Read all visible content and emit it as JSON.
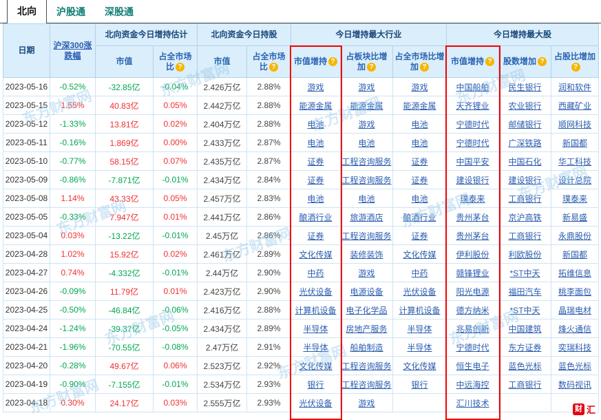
{
  "tabs": [
    {
      "label": "北向",
      "active": true
    },
    {
      "label": "沪股通",
      "active": false
    },
    {
      "label": "深股通",
      "active": false
    }
  ],
  "colors": {
    "up": "#f03030",
    "down": "#00a651",
    "link": "#2a5db0"
  },
  "watermark": {
    "text": "东方财富网"
  },
  "logo": {
    "icon": "财",
    "text": "汇"
  },
  "table": {
    "help_icon": "?",
    "groups": {
      "date": "日期",
      "hs300": "沪深300涨跌幅",
      "estimate": "北向资金今日增持估计",
      "holding": "北向资金今日持股",
      "top_industry": "今日增持最大行业",
      "top_stock": "今日增持最大股"
    },
    "subheaders": {
      "est_value": "市值",
      "est_ratio": "占全市场比",
      "hold_value": "市值",
      "hold_ratio": "占全市场比",
      "ind_value": "市值增持",
      "ind_board": "占板块比增加",
      "ind_market": "占全市场比增加",
      "stk_value": "市值增持",
      "stk_shares": "股数增加",
      "stk_ratio": "占股比增加"
    },
    "rows": [
      {
        "date": "2023-05-16",
        "hs300": "-0.52%",
        "est_value": "-32.85亿",
        "est_ratio": "-0.04%",
        "hold_value": "2.426万亿",
        "hold_ratio": "2.88%",
        "ind": [
          "游戏",
          "游戏",
          "游戏"
        ],
        "stk": [
          "中国船舶",
          "民生银行",
          "润和软件"
        ]
      },
      {
        "date": "2023-05-15",
        "hs300": "1.55%",
        "est_value": "40.83亿",
        "est_ratio": "0.05%",
        "hold_value": "2.442万亿",
        "hold_ratio": "2.88%",
        "ind": [
          "能源金属",
          "能源金属",
          "能源金属"
        ],
        "stk": [
          "天齐锂业",
          "农业银行",
          "西藏矿业"
        ]
      },
      {
        "date": "2023-05-12",
        "hs300": "-1.33%",
        "est_value": "13.81亿",
        "est_ratio": "0.02%",
        "hold_value": "2.404万亿",
        "hold_ratio": "2.88%",
        "ind": [
          "电池",
          "游戏",
          "电池"
        ],
        "stk": [
          "宁德时代",
          "邮储银行",
          "顺网科技"
        ]
      },
      {
        "date": "2023-05-11",
        "hs300": "-0.16%",
        "est_value": "1.869亿",
        "est_ratio": "0.00%",
        "hold_value": "2.433万亿",
        "hold_ratio": "2.87%",
        "ind": [
          "电池",
          "电池",
          "电池"
        ],
        "stk": [
          "宁德时代",
          "广深铁路",
          "新国都"
        ]
      },
      {
        "date": "2023-05-10",
        "hs300": "-0.77%",
        "est_value": "58.15亿",
        "est_ratio": "0.07%",
        "hold_value": "2.435万亿",
        "hold_ratio": "2.87%",
        "ind": [
          "证券",
          "工程咨询服务",
          "证券"
        ],
        "stk": [
          "中国平安",
          "中国石化",
          "华工科技"
        ]
      },
      {
        "date": "2023-05-09",
        "hs300": "-0.86%",
        "est_value": "-7.871亿",
        "est_ratio": "-0.01%",
        "hold_value": "2.434万亿",
        "hold_ratio": "2.84%",
        "ind": [
          "证券",
          "工程咨询服务",
          "证券"
        ],
        "stk": [
          "建设银行",
          "建设银行",
          "设计总院"
        ]
      },
      {
        "date": "2023-05-08",
        "hs300": "1.14%",
        "est_value": "43.33亿",
        "est_ratio": "0.05%",
        "hold_value": "2.457万亿",
        "hold_ratio": "2.83%",
        "ind": [
          "电池",
          "电池",
          "电池"
        ],
        "stk": [
          "璞泰来",
          "工商银行",
          "璞泰来"
        ]
      },
      {
        "date": "2023-05-05",
        "hs300": "-0.33%",
        "est_value": "7.947亿",
        "est_ratio": "0.01%",
        "hold_value": "2.441万亿",
        "hold_ratio": "2.86%",
        "ind": [
          "酿酒行业",
          "旅游酒店",
          "酿酒行业"
        ],
        "stk": [
          "贵州茅台",
          "京沪高铁",
          "新易盛"
        ]
      },
      {
        "date": "2023-05-04",
        "hs300": "0.03%",
        "est_value": "-13.22亿",
        "est_ratio": "-0.01%",
        "hold_value": "2.45万亿",
        "hold_ratio": "2.86%",
        "ind": [
          "证券",
          "工程咨询服务",
          "证券"
        ],
        "stk": [
          "贵州茅台",
          "工商银行",
          "永鼎股份"
        ]
      },
      {
        "date": "2023-04-28",
        "hs300": "1.02%",
        "est_value": "15.92亿",
        "est_ratio": "0.02%",
        "hold_value": "2.461万亿",
        "hold_ratio": "2.89%",
        "ind": [
          "文化传媒",
          "装修装饰",
          "文化传媒"
        ],
        "stk": [
          "伊利股份",
          "利欧股份",
          "新国都"
        ]
      },
      {
        "date": "2023-04-27",
        "hs300": "0.74%",
        "est_value": "-4.332亿",
        "est_ratio": "-0.01%",
        "hold_value": "2.44万亿",
        "hold_ratio": "2.90%",
        "ind": [
          "中药",
          "游戏",
          "中药"
        ],
        "stk": [
          "赣锋锂业",
          "*ST中天",
          "拓维信息"
        ]
      },
      {
        "date": "2023-04-26",
        "hs300": "-0.09%",
        "est_value": "11.79亿",
        "est_ratio": "0.01%",
        "hold_value": "2.423万亿",
        "hold_ratio": "2.90%",
        "ind": [
          "光伏设备",
          "电源设备",
          "光伏设备"
        ],
        "stk": [
          "阳光电源",
          "福田汽车",
          "桃李面包"
        ]
      },
      {
        "date": "2023-04-25",
        "hs300": "-0.50%",
        "est_value": "-46.84亿",
        "est_ratio": "-0.06%",
        "hold_value": "2.416万亿",
        "hold_ratio": "2.88%",
        "ind": [
          "计算机设备",
          "电子化学品",
          "计算机设备"
        ],
        "stk": [
          "德方纳米",
          "*ST中天",
          "晶瑞电材"
        ]
      },
      {
        "date": "2023-04-24",
        "hs300": "-1.24%",
        "est_value": "-39.37亿",
        "est_ratio": "-0.05%",
        "hold_value": "2.434万亿",
        "hold_ratio": "2.89%",
        "ind": [
          "半导体",
          "房地产服务",
          "半导体"
        ],
        "stk": [
          "兆易创新",
          "中国建筑",
          "烽火通信"
        ]
      },
      {
        "date": "2023-04-21",
        "hs300": "-1.96%",
        "est_value": "-70.55亿",
        "est_ratio": "-0.08%",
        "hold_value": "2.47万亿",
        "hold_ratio": "2.91%",
        "ind": [
          "半导体",
          "船舶制造",
          "半导体"
        ],
        "stk": [
          "宁德时代",
          "东方证券",
          "奕瑞科技"
        ]
      },
      {
        "date": "2023-04-20",
        "hs300": "-0.28%",
        "est_value": "49.67亿",
        "est_ratio": "0.06%",
        "hold_value": "2.523万亿",
        "hold_ratio": "2.92%",
        "ind": [
          "文化传媒",
          "工程咨询服务",
          "文化传媒"
        ],
        "stk": [
          "恒生电子",
          "蓝色光标",
          "蓝色光标"
        ]
      },
      {
        "date": "2023-04-19",
        "hs300": "-0.90%",
        "est_value": "-7.155亿",
        "est_ratio": "-0.01%",
        "hold_value": "2.534万亿",
        "hold_ratio": "2.93%",
        "ind": [
          "银行",
          "工程咨询服务",
          "银行"
        ],
        "stk": [
          "中远海控",
          "工商银行",
          "数码视讯"
        ]
      },
      {
        "date": "2023-04-18",
        "hs300": "0.30%",
        "est_value": "24.17亿",
        "est_ratio": "0.03%",
        "hold_value": "2.555万亿",
        "hold_ratio": "2.93%",
        "ind": [
          "光伏设备",
          "游戏",
          ""
        ],
        "stk": [
          "汇川技术",
          "",
          ""
        ]
      }
    ]
  }
}
